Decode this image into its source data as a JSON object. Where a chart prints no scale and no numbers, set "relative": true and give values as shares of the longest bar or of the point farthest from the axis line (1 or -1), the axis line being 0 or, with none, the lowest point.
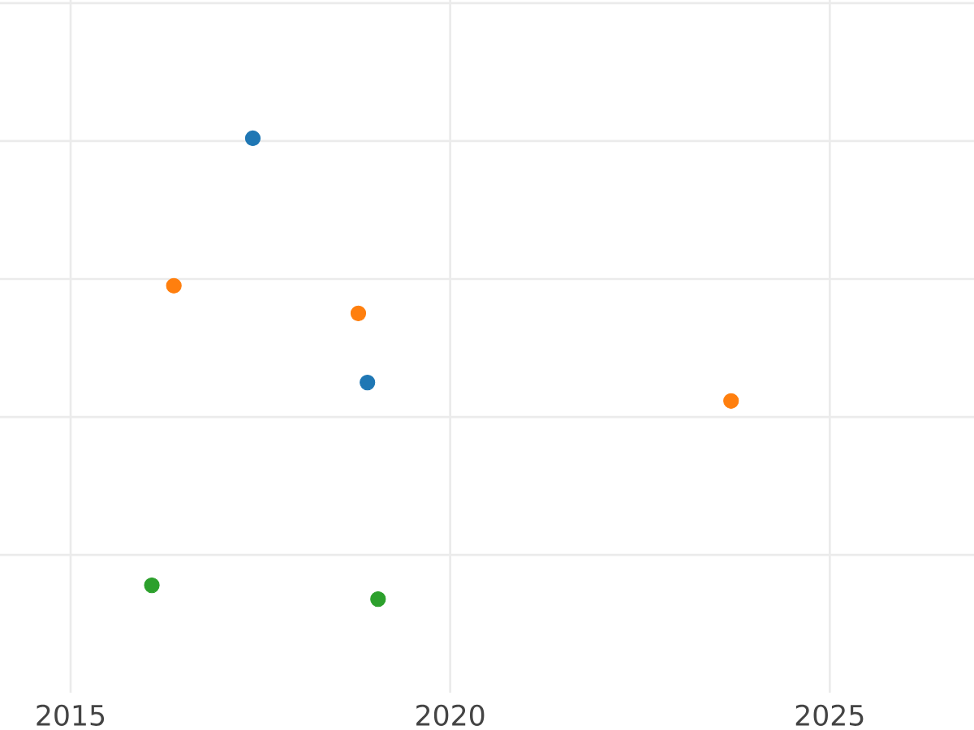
{
  "chart_data": {
    "type": "scatter",
    "relative": true,
    "xlim": [
      2014.07,
      2026.9
    ],
    "xticks": [
      2015,
      2020,
      2025
    ],
    "grid": true,
    "marker": "circle",
    "series": [
      {
        "color": "#1f77b4",
        "x": [
          2017.4,
          2018.91
        ],
        "values": [
          1,
          0.47
        ]
      },
      {
        "color": "#ff7f0e",
        "x": [
          2016.36,
          2018.79,
          2023.7
        ],
        "values": [
          0.68,
          0.62,
          0.43
        ]
      },
      {
        "color": "#2ca02c",
        "x": [
          2016.07,
          2019.05
        ],
        "values": [
          0.03,
          0
        ]
      }
    ]
  }
}
